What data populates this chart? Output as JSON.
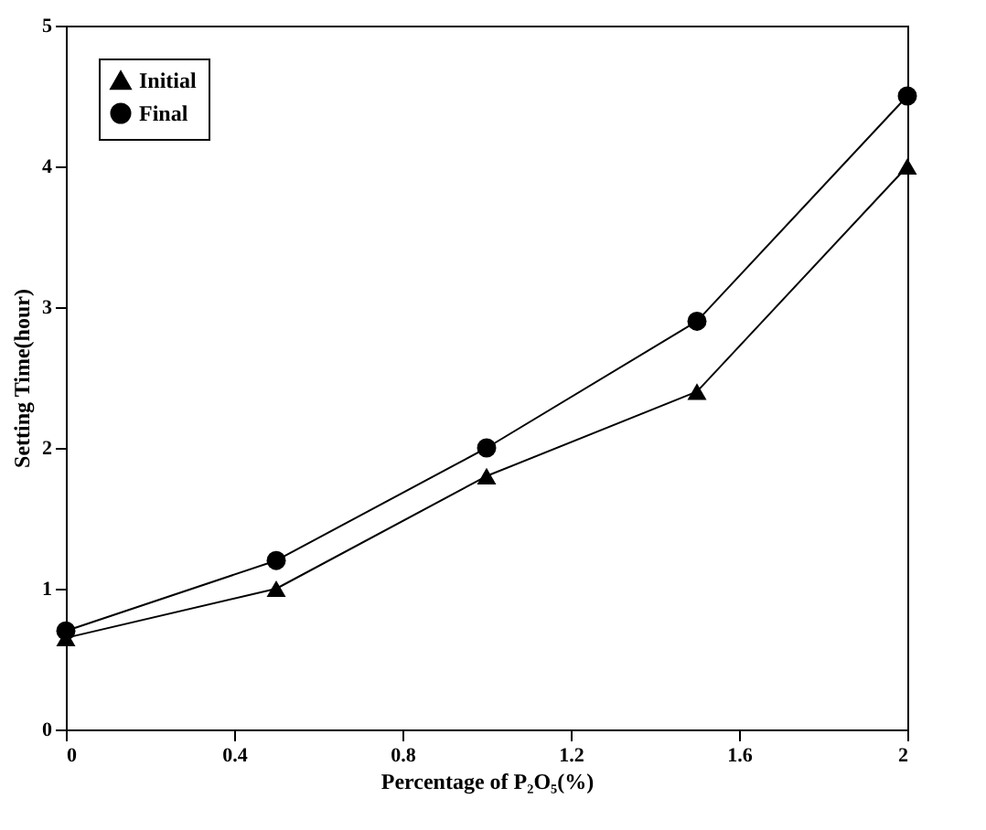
{
  "chart_data": {
    "type": "line",
    "xlabel": "Percentage of P₂O₅(%)",
    "ylabel": "Setting Time(hour)",
    "x": [
      0,
      0.5,
      1,
      1.5,
      2
    ],
    "xlim": [
      0,
      2
    ],
    "xticks": [
      0,
      0.4,
      0.8,
      1.2,
      1.6,
      2
    ],
    "ylim": [
      0,
      5
    ],
    "yticks": [
      0,
      1,
      2,
      3,
      4,
      5
    ],
    "grid": false,
    "legend": "top left",
    "series": [
      {
        "name": "Initial",
        "color": "#000000",
        "marker": "triangle",
        "values": [
          0.65,
          1.0,
          1.8,
          2.4,
          4.0
        ]
      },
      {
        "name": "Final",
        "color": "#000000",
        "marker": "circle",
        "values": [
          0.7,
          1.2,
          2.0,
          2.9,
          4.5
        ]
      }
    ]
  }
}
